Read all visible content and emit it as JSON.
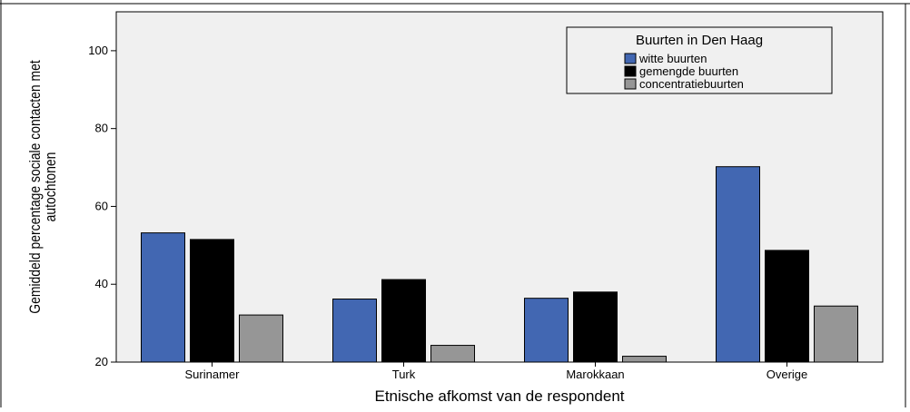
{
  "chart_data": {
    "type": "bar",
    "title": "",
    "xlabel": "Etnische afkomst van de respondent",
    "ylabel": "Gemiddeld percentage sociale contacten met autochtonen",
    "ylabel_lines": [
      "Gemiddeld percentage sociale contacten met",
      "autochtonen"
    ],
    "categories": [
      "Surinamer",
      "Turk",
      "Marokkaan",
      "Overige"
    ],
    "ylim": [
      20,
      110
    ],
    "yticks": [
      20,
      40,
      60,
      80,
      100
    ],
    "ytick_labels": [
      "20",
      "40",
      "60",
      "80",
      "100"
    ],
    "grid": false,
    "legend": {
      "title": "Buurten in Den Haag",
      "position": "top-right"
    },
    "series": [
      {
        "name": "witte buurten",
        "color": "#4267b2",
        "values": [
          53.2,
          36.2,
          36.4,
          70.2
        ]
      },
      {
        "name": "gemengde buurten",
        "color": "#000000",
        "values": [
          51.5,
          41.2,
          38.0,
          48.7
        ]
      },
      {
        "name": "concentratiebuurten",
        "color": "#969696",
        "values": [
          32.1,
          24.3,
          21.5,
          34.4
        ]
      }
    ]
  },
  "colors": {
    "plot_background": "#f0f0f0",
    "page_background": "#ffffff",
    "axis": "#000000"
  }
}
